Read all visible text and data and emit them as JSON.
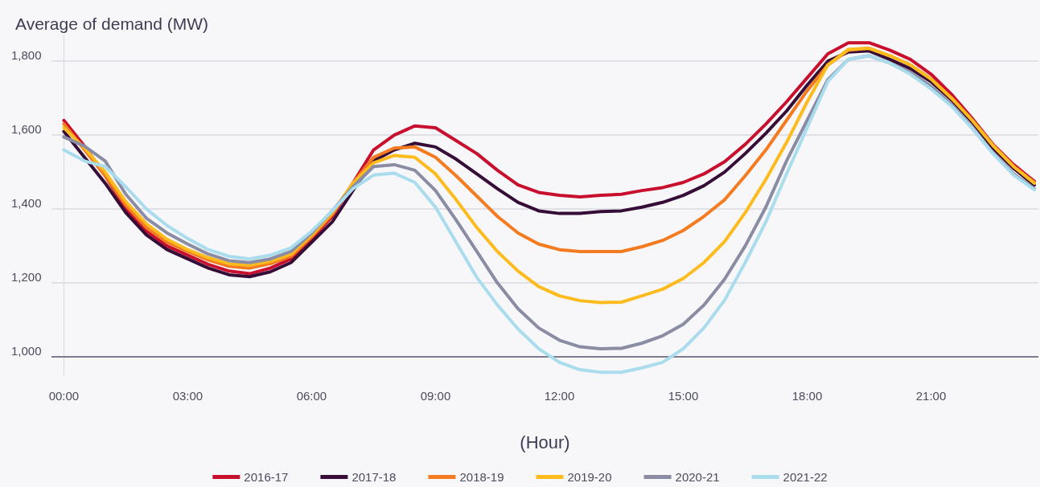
{
  "chart_data": {
    "type": "line",
    "title": "Average of demand (MW)",
    "xlabel": "(Hour)",
    "x": [
      0,
      0.5,
      1,
      1.5,
      2,
      2.5,
      3,
      3.5,
      4,
      4.5,
      5,
      5.5,
      6,
      6.5,
      7,
      7.5,
      8,
      8.5,
      9,
      9.5,
      10,
      10.5,
      11,
      11.5,
      12,
      12.5,
      13,
      13.5,
      14,
      14.5,
      15,
      15.5,
      16,
      16.5,
      17,
      17.5,
      18,
      18.5,
      19,
      19.5,
      20,
      20.5,
      21,
      21.5,
      22,
      22.5,
      23,
      23.5
    ],
    "series": [
      {
        "name": "2016-17",
        "color": "#c8102e",
        "values": [
          1640,
          1570,
          1490,
          1400,
          1340,
          1300,
          1275,
          1250,
          1232,
          1225,
          1240,
          1265,
          1320,
          1380,
          1470,
          1560,
          1600,
          1625,
          1620,
          1585,
          1550,
          1505,
          1465,
          1445,
          1437,
          1433,
          1437,
          1440,
          1450,
          1458,
          1472,
          1495,
          1528,
          1575,
          1630,
          1690,
          1755,
          1820,
          1850,
          1850,
          1830,
          1805,
          1765,
          1710,
          1645,
          1575,
          1520,
          1475
        ]
      },
      {
        "name": "2017-18",
        "color": "#350d36",
        "values": [
          1610,
          1540,
          1470,
          1390,
          1330,
          1290,
          1265,
          1240,
          1222,
          1217,
          1230,
          1255,
          1310,
          1365,
          1450,
          1530,
          1560,
          1578,
          1568,
          1535,
          1495,
          1455,
          1418,
          1395,
          1388,
          1388,
          1393,
          1395,
          1405,
          1418,
          1437,
          1463,
          1500,
          1550,
          1605,
          1665,
          1735,
          1800,
          1825,
          1828,
          1805,
          1780,
          1745,
          1695,
          1635,
          1565,
          1510,
          1465
        ]
      },
      {
        "name": "2018-19",
        "color": "#f47b20",
        "values": [
          1630,
          1560,
          1490,
          1410,
          1350,
          1310,
          1285,
          1262,
          1245,
          1240,
          1252,
          1272,
          1325,
          1385,
          1470,
          1540,
          1565,
          1568,
          1540,
          1490,
          1435,
          1380,
          1335,
          1305,
          1290,
          1285,
          1285,
          1285,
          1298,
          1315,
          1342,
          1380,
          1425,
          1490,
          1560,
          1640,
          1720,
          1790,
          1830,
          1835,
          1815,
          1790,
          1752,
          1700,
          1640,
          1572,
          1515,
          1472
        ]
      },
      {
        "name": "2019-20",
        "color": "#fdbb1e",
        "values": [
          1620,
          1565,
          1500,
          1420,
          1360,
          1318,
          1290,
          1268,
          1252,
          1248,
          1258,
          1278,
          1330,
          1390,
          1470,
          1525,
          1545,
          1540,
          1495,
          1425,
          1350,
          1285,
          1232,
          1190,
          1165,
          1152,
          1147,
          1148,
          1165,
          1183,
          1212,
          1255,
          1312,
          1390,
          1480,
          1580,
          1690,
          1790,
          1832,
          1835,
          1815,
          1790,
          1752,
          1700,
          1640,
          1572,
          1515,
          1470
        ]
      },
      {
        "name": "2020-21",
        "color": "#8a8ca3",
        "values": [
          1595,
          1570,
          1530,
          1440,
          1375,
          1335,
          1305,
          1278,
          1260,
          1255,
          1265,
          1285,
          1335,
          1395,
          1460,
          1515,
          1520,
          1505,
          1450,
          1370,
          1285,
          1200,
          1130,
          1078,
          1045,
          1027,
          1022,
          1023,
          1037,
          1057,
          1088,
          1140,
          1210,
          1300,
          1405,
          1530,
          1640,
          1750,
          1805,
          1815,
          1795,
          1770,
          1732,
          1682,
          1620,
          1552,
          1495,
          1455
        ]
      },
      {
        "name": "2021-22",
        "color": "#a9dcec",
        "values": [
          1560,
          1530,
          1515,
          1460,
          1400,
          1355,
          1320,
          1290,
          1272,
          1265,
          1275,
          1295,
          1340,
          1395,
          1455,
          1492,
          1497,
          1472,
          1405,
          1310,
          1215,
          1140,
          1075,
          1022,
          985,
          965,
          958,
          958,
          970,
          985,
          1022,
          1078,
          1153,
          1255,
          1365,
          1495,
          1620,
          1745,
          1805,
          1815,
          1795,
          1765,
          1725,
          1678,
          1618,
          1550,
          1492,
          1452
        ]
      }
    ],
    "xlim": [
      -0.3,
      23.6
    ],
    "xticks": [
      {
        "value": 0,
        "label": "00:00"
      },
      {
        "value": 3,
        "label": "03:00"
      },
      {
        "value": 6,
        "label": "06:00"
      },
      {
        "value": 9,
        "label": "09:00"
      },
      {
        "value": 12,
        "label": "12:00"
      },
      {
        "value": 15,
        "label": "15:00"
      },
      {
        "value": 18,
        "label": "18:00"
      },
      {
        "value": 21,
        "label": "21:00"
      }
    ],
    "ylim": [
      950,
      1870
    ],
    "yticks": [
      {
        "value": 1000,
        "label": "1,000"
      },
      {
        "value": 1200,
        "label": "1,200"
      },
      {
        "value": 1400,
        "label": "1,400"
      },
      {
        "value": 1600,
        "label": "1,600"
      },
      {
        "value": 1800,
        "label": "1,800"
      }
    ],
    "ref_lines": [
      {
        "axis": "y",
        "value": 1000,
        "color": "#5b5b70"
      }
    ],
    "grid": "y",
    "legend": "bottom",
    "marker": "none",
    "line_style": "solid"
  }
}
